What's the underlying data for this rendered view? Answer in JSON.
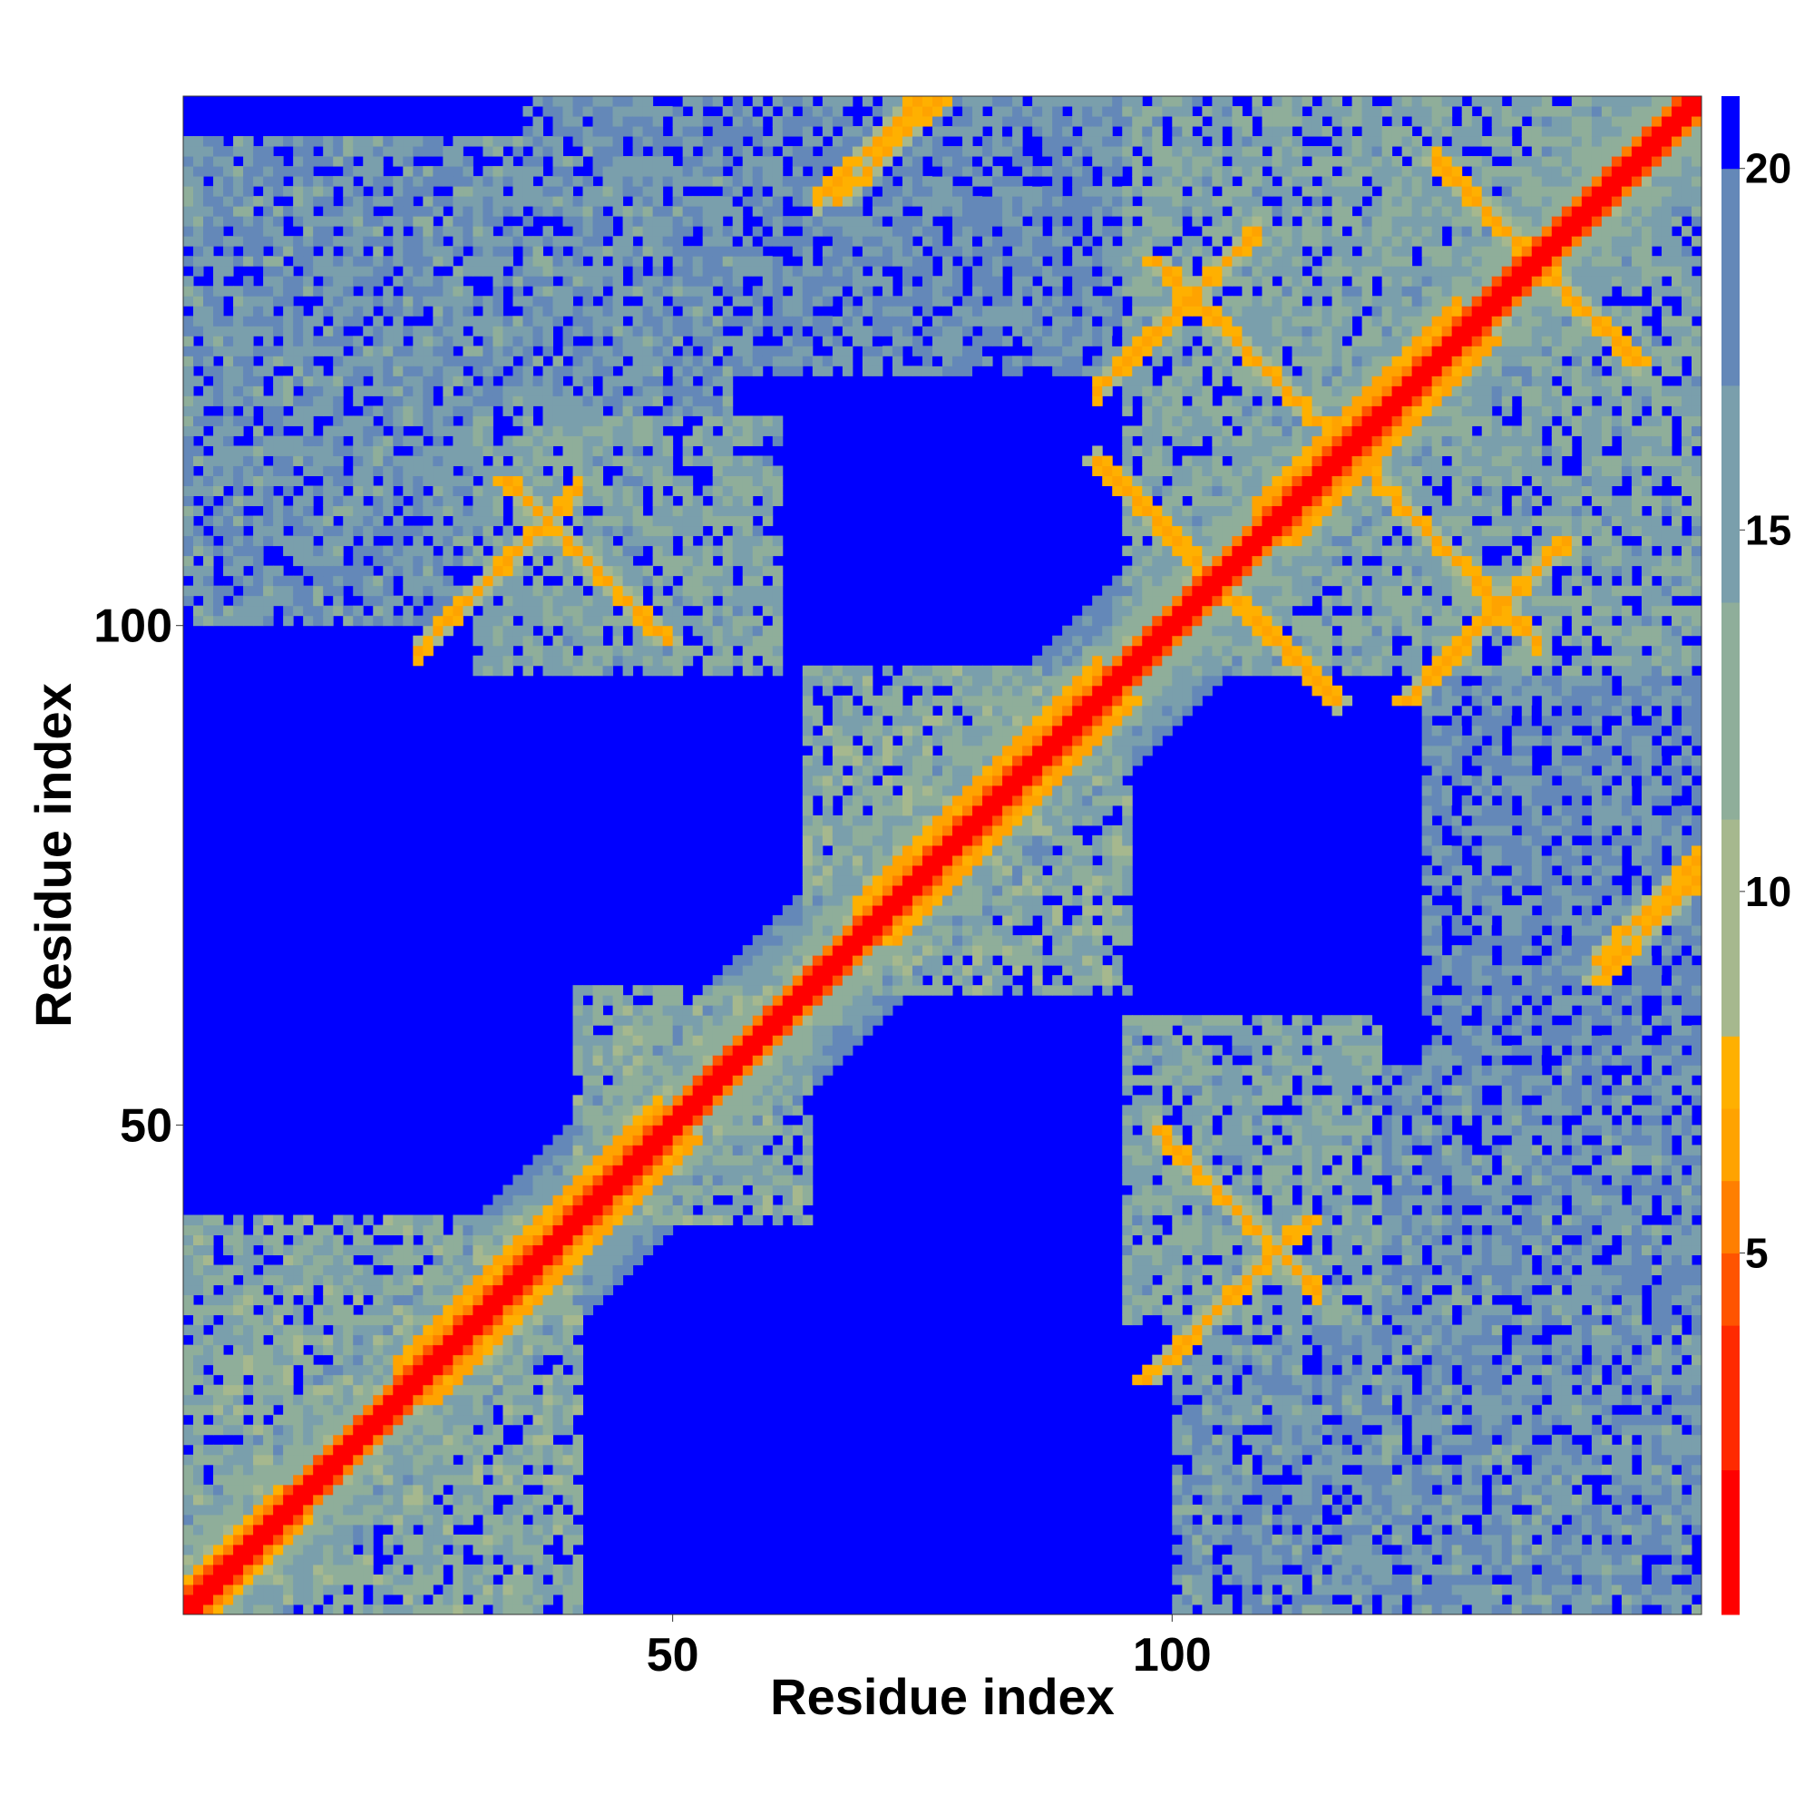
{
  "chart_data": {
    "type": "heatmap",
    "title": "",
    "xlabel": "Residue index",
    "ylabel": "Residue index",
    "n_residues": 152,
    "xlim": [
      1,
      153
    ],
    "ylim": [
      1,
      153
    ],
    "x_ticks": [
      50,
      100
    ],
    "y_ticks": [
      50,
      100
    ],
    "grid": false,
    "colorbar": {
      "ticks": [
        5,
        10,
        15,
        20
      ],
      "min": 0,
      "max": 21,
      "clip_value": 21,
      "colors": [
        {
          "from": 0,
          "to": 2,
          "color": "#ff0000"
        },
        {
          "from": 2,
          "to": 4,
          "color": "#ff2a00"
        },
        {
          "from": 4,
          "to": 5,
          "color": "#ff5400"
        },
        {
          "from": 5,
          "to": 6,
          "color": "#ff7f00"
        },
        {
          "from": 6,
          "to": 7,
          "color": "#ffa300"
        },
        {
          "from": 7,
          "to": 8,
          "color": "#ffb000"
        },
        {
          "from": 8,
          "to": 11,
          "color": "#a6b88e"
        },
        {
          "from": 11,
          "to": 14,
          "color": "#8fae9a"
        },
        {
          "from": 14,
          "to": 17,
          "color": "#7a9fac"
        },
        {
          "from": 17,
          "to": 20,
          "color": "#6488b8"
        },
        {
          "from": 20,
          "to": 21,
          "color": "#0000ff"
        }
      ]
    },
    "contact_features": [
      {
        "kind": "diagonal",
        "range": [
          1,
          152
        ],
        "value": 1
      },
      {
        "kind": "helix_band",
        "range": [
          22,
          48
        ],
        "value": 6
      },
      {
        "kind": "helix_band",
        "range": [
          68,
          92
        ],
        "value": 6
      },
      {
        "kind": "helix_band",
        "range": [
          108,
          128
        ],
        "value": 6
      },
      {
        "kind": "antiparallel",
        "center": [
          104,
          104
        ],
        "length": 12,
        "value": 6
      },
      {
        "kind": "antiparallel",
        "center": [
          136,
          136
        ],
        "length": 10,
        "value": 6
      },
      {
        "kind": "antiparallel",
        "center": [
          106,
          41
        ],
        "length": 8,
        "value": 6
      },
      {
        "kind": "antiparallel",
        "center": [
          128,
          106
        ],
        "length": 8,
        "value": 6
      },
      {
        "kind": "parallel",
        "center": [
          32,
          105
        ],
        "length": 8,
        "value": 6
      },
      {
        "kind": "parallel",
        "center": [
          70,
          148
        ],
        "length": 6,
        "value": 6
      },
      {
        "kind": "parallel",
        "center": [
          100,
          131
        ],
        "length": 8,
        "value": 6
      },
      {
        "kind": "parallel",
        "center": [
          148,
          72
        ],
        "length": 6,
        "value": 6
      },
      {
        "kind": "parallel",
        "center": [
          5,
          3
        ],
        "length": 8,
        "value": 5
      }
    ],
    "domains": [
      {
        "x": [
          1,
          40
        ],
        "y": [
          1,
          40
        ],
        "value": 12
      },
      {
        "x": [
          40,
          63
        ],
        "y": [
          40,
          63
        ],
        "value": 12
      },
      {
        "x": [
          63,
          95
        ],
        "y": [
          63,
          95
        ],
        "value": 12
      },
      {
        "x": [
          95,
          153
        ],
        "y": [
          95,
          153
        ],
        "value": 13
      },
      {
        "x": [
          1,
          55
        ],
        "y": [
          100,
          148
        ],
        "value": 15
      },
      {
        "x": [
          100,
          153
        ],
        "y": [
          1,
          55
        ],
        "value": 15
      },
      {
        "x": [
          35,
          110
        ],
        "y": [
          125,
          153
        ],
        "value": 16
      },
      {
        "x": [
          125,
          153
        ],
        "y": [
          35,
          110
        ],
        "value": 16
      },
      {
        "x": [
          95,
          120
        ],
        "y": [
          30,
          60
        ],
        "value": 13
      },
      {
        "x": [
          30,
          60
        ],
        "y": [
          95,
          120
        ],
        "value": 13
      }
    ]
  }
}
